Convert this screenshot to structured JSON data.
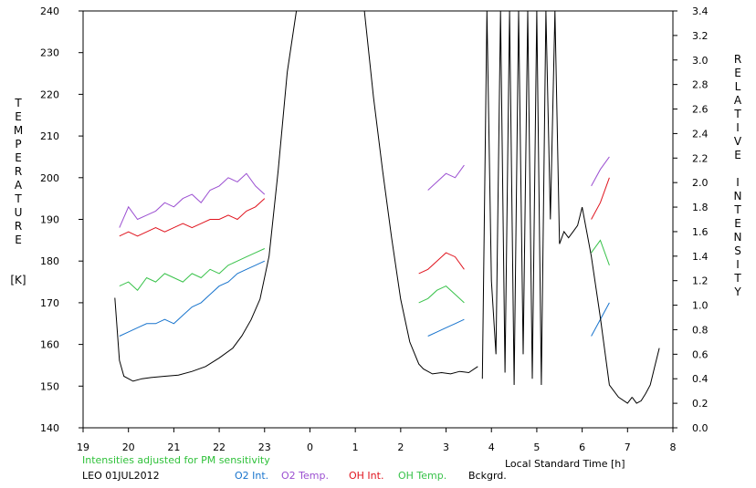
{
  "chart_data": {
    "type": "line",
    "left_axis": {
      "label": "TEMPERATURE",
      "unit": "[K]",
      "ylim": [
        140,
        240
      ],
      "ticks": [
        140,
        150,
        160,
        170,
        180,
        190,
        200,
        210,
        220,
        230,
        240
      ]
    },
    "right_axis": {
      "label": "RELATIVE INTENSITY",
      "ylim": [
        0.0,
        3.4
      ],
      "ticks": [
        "0.0",
        "0.2",
        "0.4",
        "0.6",
        "0.8",
        "1.0",
        "1.2",
        "1.4",
        "1.6",
        "1.8",
        "2.0",
        "2.2",
        "2.4",
        "2.6",
        "2.8",
        "3.0",
        "3.2",
        "3.4"
      ]
    },
    "x_axis": {
      "label": "Local Standard Time [h]",
      "xlim": [
        19,
        32
      ],
      "ticks": [
        "19",
        "20",
        "21",
        "22",
        "23",
        "0",
        "1",
        "2",
        "3",
        "4",
        "5",
        "6",
        "7",
        "8"
      ]
    },
    "note": "Intensities adjusted for PM sensitivity",
    "station": "LEO 01JUL2012",
    "colors": {
      "o2_int": "#1874cd",
      "o2_temp": "#9b4fd1",
      "oh_int": "#e0141e",
      "oh_temp": "#38c24a",
      "bckgrd": "#000000",
      "note": "#2fc13a"
    },
    "series": [
      {
        "name": "O2 Int.",
        "color_key": "o2_int",
        "axis": "left",
        "segments": [
          {
            "x": [
              19.8,
              20.0,
              20.2,
              20.4,
              20.6,
              20.8,
              21.0,
              21.2,
              21.4,
              21.6,
              21.8,
              22.0,
              22.2,
              22.4,
              22.6,
              22.8,
              23.0
            ],
            "y": [
              162,
              163,
              164,
              165,
              165,
              166,
              165,
              167,
              169,
              170,
              172,
              174,
              175,
              177,
              178,
              179,
              180
            ]
          },
          {
            "x": [
              26.6,
              26.8,
              27.0,
              27.2,
              27.4
            ],
            "y": [
              162,
              163,
              164,
              165,
              166
            ]
          },
          {
            "x": [
              30.2,
              30.4,
              30.6
            ],
            "y": [
              162,
              166,
              170
            ]
          }
        ]
      },
      {
        "name": "O2 Temp.",
        "color_key": "o2_temp",
        "axis": "left",
        "segments": [
          {
            "x": [
              19.8,
              20.0,
              20.2,
              20.4,
              20.6,
              20.8,
              21.0,
              21.2,
              21.4,
              21.6,
              21.8,
              22.0,
              22.2,
              22.4,
              22.6,
              22.8,
              23.0
            ],
            "y": [
              188,
              193,
              190,
              191,
              192,
              194,
              193,
              195,
              196,
              194,
              197,
              198,
              200,
              199,
              201,
              198,
              196
            ]
          },
          {
            "x": [
              26.6,
              26.8,
              27.0,
              27.2,
              27.4
            ],
            "y": [
              197,
              199,
              201,
              200,
              203
            ]
          },
          {
            "x": [
              30.2,
              30.4,
              30.6
            ],
            "y": [
              198,
              202,
              205
            ]
          }
        ]
      },
      {
        "name": "OH Int.",
        "color_key": "oh_int",
        "axis": "left",
        "segments": [
          {
            "x": [
              19.8,
              20.0,
              20.2,
              20.4,
              20.6,
              20.8,
              21.0,
              21.2,
              21.4,
              21.6,
              21.8,
              22.0,
              22.2,
              22.4,
              22.6,
              22.8,
              23.0
            ],
            "y": [
              186,
              187,
              186,
              187,
              188,
              187,
              188,
              189,
              188,
              189,
              190,
              190,
              191,
              190,
              192,
              193,
              195
            ]
          },
          {
            "x": [
              26.4,
              26.6,
              26.8,
              27.0,
              27.2,
              27.4
            ],
            "y": [
              177,
              178,
              180,
              182,
              181,
              178
            ]
          },
          {
            "x": [
              30.2,
              30.4,
              30.6
            ],
            "y": [
              190,
              194,
              200
            ]
          }
        ]
      },
      {
        "name": "OH Temp.",
        "color_key": "oh_temp",
        "axis": "left",
        "segments": [
          {
            "x": [
              19.8,
              20.0,
              20.2,
              20.4,
              20.6,
              20.8,
              21.0,
              21.2,
              21.4,
              21.6,
              21.8,
              22.0,
              22.2,
              22.4,
              22.6,
              22.8,
              23.0
            ],
            "y": [
              174,
              175,
              173,
              176,
              175,
              177,
              176,
              175,
              177,
              176,
              178,
              177,
              179,
              180,
              181,
              182,
              183
            ]
          },
          {
            "x": [
              26.4,
              26.6,
              26.8,
              27.0,
              27.2,
              27.4
            ],
            "y": [
              170,
              171,
              173,
              174,
              172,
              170
            ]
          },
          {
            "x": [
              30.2,
              30.4,
              30.6
            ],
            "y": [
              182,
              185,
              179
            ]
          }
        ]
      },
      {
        "name": "Bckgrd.",
        "color_key": "bckgrd",
        "axis": "right",
        "segments": [
          {
            "x": [
              19.7,
              19.8,
              19.9,
              20.1,
              20.3,
              20.5,
              20.8,
              21.1,
              21.4,
              21.7,
              22.0,
              22.3,
              22.5,
              22.7,
              22.9,
              23.1,
              23.3,
              23.5,
              23.7,
              24.0,
              24.3
            ],
            "y": [
              1.06,
              0.55,
              0.42,
              0.38,
              0.4,
              0.41,
              0.42,
              0.43,
              0.46,
              0.5,
              0.57,
              0.65,
              0.75,
              0.88,
              1.05,
              1.4,
              2.1,
              2.9,
              3.4,
              3.4,
              3.4
            ]
          },
          {
            "x": [
              25.2,
              25.4,
              25.6,
              25.8,
              26.0,
              26.2,
              26.4,
              26.5,
              26.7,
              26.9,
              27.1,
              27.3,
              27.5,
              27.7
            ],
            "y": [
              3.4,
              2.7,
              2.1,
              1.55,
              1.05,
              0.7,
              0.52,
              0.48,
              0.44,
              0.45,
              0.44,
              0.46,
              0.45,
              0.5
            ]
          },
          {
            "x": [
              27.8,
              27.9,
              28.0,
              28.1,
              28.2,
              28.3,
              28.4,
              28.5,
              28.6,
              28.7,
              28.8,
              28.9,
              29.0,
              29.1,
              29.2,
              29.3,
              29.4,
              29.5,
              29.6,
              29.7,
              29.8,
              29.9,
              30.0,
              30.2,
              30.4,
              30.6,
              30.8,
              31.0,
              31.1
            ],
            "y": [
              0.4,
              3.4,
              1.2,
              0.6,
              3.4,
              0.45,
              3.4,
              0.35,
              3.4,
              0.6,
              3.4,
              0.4,
              3.4,
              0.35,
              3.4,
              1.7,
              3.4,
              1.5,
              1.6,
              1.55,
              1.6,
              1.65,
              1.8,
              1.4,
              0.9,
              0.35,
              0.25,
              0.2,
              0.25
            ]
          },
          {
            "x": [
              31.1,
              31.2,
              31.3,
              31.4,
              31.5,
              31.6,
              31.7
            ],
            "y": [
              0.25,
              0.2,
              0.22,
              0.28,
              0.35,
              0.5,
              0.65
            ]
          }
        ]
      }
    ]
  },
  "legend": [
    {
      "label": "O2 Int.",
      "color_key": "o2_int"
    },
    {
      "label": "O2 Temp.",
      "color_key": "o2_temp"
    },
    {
      "label": "OH Int.",
      "color_key": "oh_int"
    },
    {
      "label": "OH Temp.",
      "color_key": "oh_temp"
    },
    {
      "label": "Bckgrd.",
      "color_key": "bckgrd"
    }
  ]
}
